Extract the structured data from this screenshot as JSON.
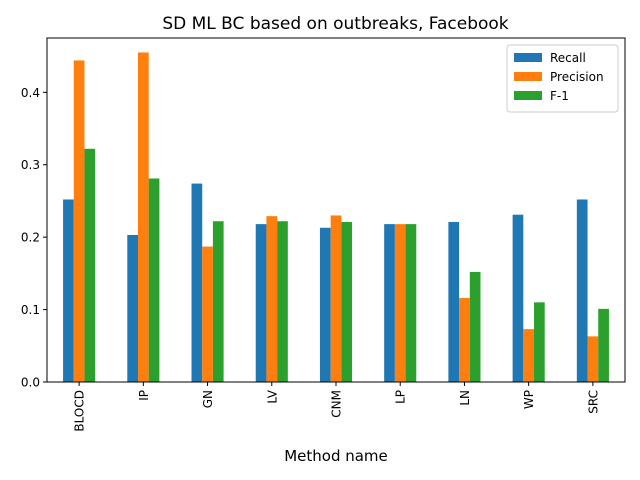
{
  "chart_data": {
    "type": "bar",
    "title": "SD ML BC based on outbreaks, Facebook",
    "xlabel": "Method name",
    "ylabel": "",
    "categories": [
      "BLOCD",
      "IP",
      "GN",
      "LV",
      "CNM",
      "LP",
      "LN",
      "WP",
      "SRC"
    ],
    "series": [
      {
        "name": "Recall",
        "color": "#1f77b4",
        "values": [
          0.252,
          0.203,
          0.274,
          0.218,
          0.213,
          0.218,
          0.221,
          0.231,
          0.252
        ]
      },
      {
        "name": "Precision",
        "color": "#ff7f0e",
        "values": [
          0.444,
          0.455,
          0.187,
          0.229,
          0.23,
          0.218,
          0.116,
          0.073,
          0.063
        ]
      },
      {
        "name": "F-1",
        "color": "#2ca02c",
        "values": [
          0.322,
          0.281,
          0.222,
          0.222,
          0.221,
          0.218,
          0.152,
          0.11,
          0.101
        ]
      }
    ],
    "ylim": [
      0,
      0.475
    ],
    "yticks": [
      "0.0",
      "0.1",
      "0.2",
      "0.3",
      "0.4"
    ],
    "grid": false,
    "legend_position": "top-right"
  }
}
